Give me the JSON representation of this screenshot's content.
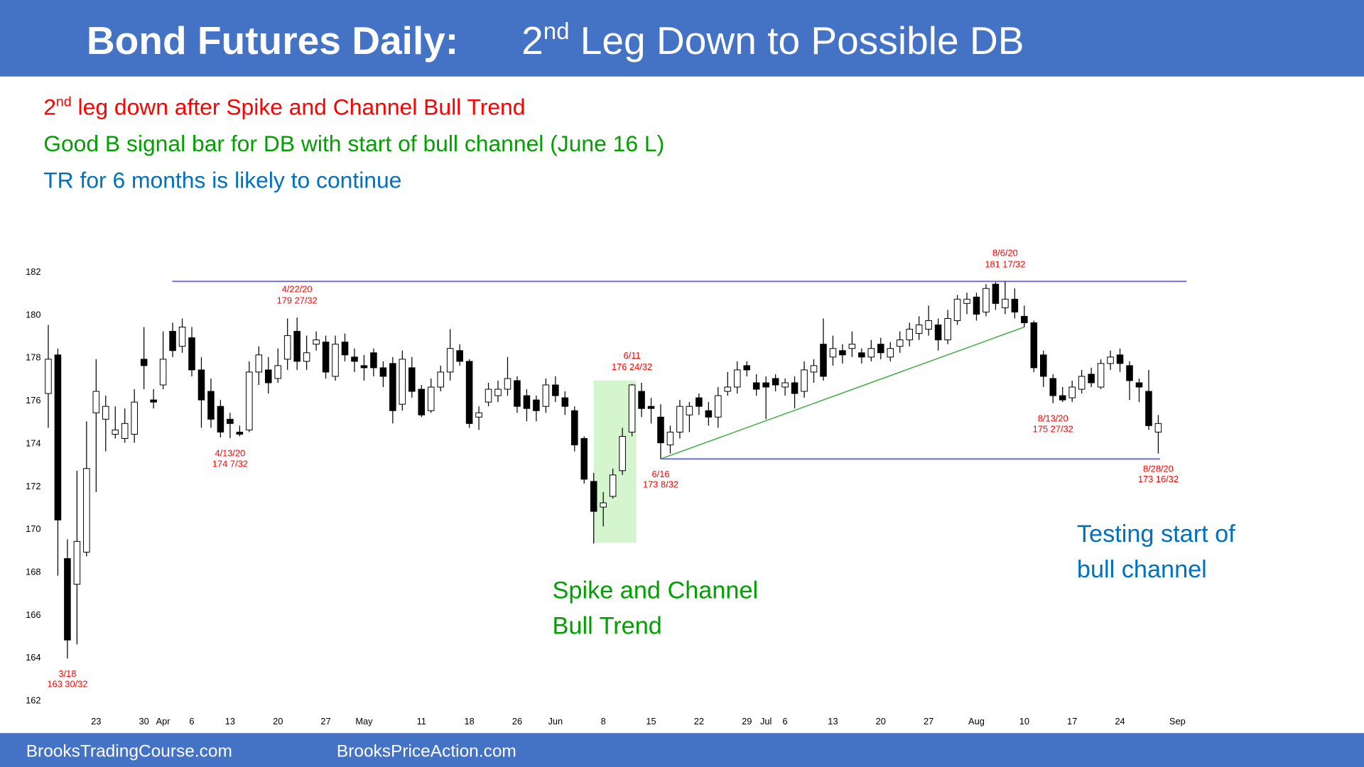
{
  "header": {
    "title_bold": "Bond Futures Daily:",
    "title_ordinal": "2",
    "title_sup": "nd",
    "title_rest": " Leg Down to Possible DB"
  },
  "notes": [
    {
      "ordinal": "2",
      "sup": "nd",
      "rest": " leg down after Spike and Channel Bull Trend",
      "color": "#ff0000"
    },
    {
      "text": "Good B signal bar for DB with start of bull channel (June 16 L)",
      "color": "#00a000"
    },
    {
      "text": "TR for 6 months is likely to continue",
      "color": "#0070c0"
    }
  ],
  "callouts": [
    {
      "lines": [
        "Spike and Channel",
        "Bull Trend"
      ],
      "color": "#00a000"
    },
    {
      "lines": [
        "Testing start of",
        "bull channel"
      ],
      "color": "#0070c0"
    }
  ],
  "footer": [
    "BrooksTradingCourse.com",
    "BrooksPriceAction.com"
  ],
  "chart_data": {
    "type": "candlestick",
    "x": [
      "2020-03-16",
      "2020-03-17",
      "2020-03-18",
      "2020-03-19",
      "2020-03-20",
      "2020-03-23",
      "2020-03-24",
      "2020-03-25",
      "2020-03-26",
      "2020-03-27",
      "2020-03-30",
      "2020-03-31",
      "2020-04-01",
      "2020-04-02",
      "2020-04-03",
      "2020-04-06",
      "2020-04-07",
      "2020-04-08",
      "2020-04-09",
      "2020-04-13",
      "2020-04-14",
      "2020-04-15",
      "2020-04-16",
      "2020-04-17",
      "2020-04-20",
      "2020-04-21",
      "2020-04-22",
      "2020-04-23",
      "2020-04-24",
      "2020-04-27",
      "2020-04-28",
      "2020-04-29",
      "2020-04-30",
      "2020-05-01",
      "2020-05-04",
      "2020-05-05",
      "2020-05-06",
      "2020-05-07",
      "2020-05-08",
      "2020-05-11",
      "2020-05-12",
      "2020-05-13",
      "2020-05-14",
      "2020-05-15",
      "2020-05-18",
      "2020-05-19",
      "2020-05-20",
      "2020-05-21",
      "2020-05-22",
      "2020-05-26",
      "2020-05-27",
      "2020-05-28",
      "2020-05-29",
      "2020-06-01",
      "2020-06-02",
      "2020-06-03",
      "2020-06-04",
      "2020-06-05",
      "2020-06-08",
      "2020-06-09",
      "2020-06-10",
      "2020-06-11",
      "2020-06-12",
      "2020-06-15",
      "2020-06-16",
      "2020-06-17",
      "2020-06-18",
      "2020-06-19",
      "2020-06-22",
      "2020-06-23",
      "2020-06-24",
      "2020-06-25",
      "2020-06-26",
      "2020-06-29",
      "2020-06-30",
      "2020-07-01",
      "2020-07-02",
      "2020-07-06",
      "2020-07-07",
      "2020-07-08",
      "2020-07-09",
      "2020-07-10",
      "2020-07-13",
      "2020-07-14",
      "2020-07-15",
      "2020-07-16",
      "2020-07-17",
      "2020-07-20",
      "2020-07-21",
      "2020-07-22",
      "2020-07-23",
      "2020-07-24",
      "2020-07-27",
      "2020-07-28",
      "2020-07-29",
      "2020-07-30",
      "2020-07-31",
      "2020-08-03",
      "2020-08-04",
      "2020-08-05",
      "2020-08-06",
      "2020-08-07",
      "2020-08-10",
      "2020-08-11",
      "2020-08-12",
      "2020-08-13",
      "2020-08-14",
      "2020-08-17",
      "2020-08-18",
      "2020-08-19",
      "2020-08-20",
      "2020-08-21",
      "2020-08-24",
      "2020-08-25",
      "2020-08-26",
      "2020-08-27",
      "2020-08-28"
    ],
    "open": [
      176.3,
      178.1,
      168.6,
      167.4,
      168.9,
      175.4,
      175.1,
      174.4,
      174.2,
      174.4,
      177.9,
      176.0,
      176.7,
      179.2,
      178.5,
      178.9,
      177.4,
      176.4,
      175.7,
      175.1,
      174.5,
      174.6,
      177.3,
      177.4,
      177.0,
      177.9,
      179.2,
      177.8,
      178.6,
      178.7,
      177.1,
      178.7,
      178.0,
      177.6,
      178.2,
      177.5,
      177.7,
      175.8,
      177.5,
      176.5,
      175.5,
      176.6,
      177.3,
      178.3,
      177.8,
      175.2,
      175.9,
      176.2,
      176.5,
      176.9,
      176.2,
      176.0,
      175.7,
      176.7,
      176.1,
      175.5,
      174.2,
      172.2,
      171.0,
      171.5,
      172.7,
      174.5,
      176.4,
      175.7,
      175.2,
      173.9,
      174.5,
      175.3,
      176.1,
      175.5,
      175.2,
      176.4,
      176.6,
      177.6,
      176.8,
      176.8,
      177.0,
      176.6,
      176.8,
      176.4,
      177.3,
      178.6,
      178.0,
      178.3,
      178.4,
      178.2,
      178.0,
      178.6,
      178.0,
      178.5,
      178.8,
      179.1,
      179.3,
      179.5,
      178.8,
      179.7,
      180.5,
      180.8,
      180.1,
      181.4,
      180.3,
      180.7,
      179.9,
      179.6,
      178.1,
      177.0,
      176.2,
      176.1,
      176.5,
      177.2,
      176.6,
      177.7,
      178.1,
      177.6,
      176.8,
      176.4,
      174.5
    ],
    "high": [
      179.5,
      178.4,
      169.5,
      172.7,
      175.0,
      177.9,
      176.2,
      175.7,
      175.6,
      176.5,
      179.4,
      176.5,
      179.2,
      179.6,
      179.8,
      179.4,
      178.0,
      177.0,
      176.0,
      175.4,
      174.8,
      177.8,
      178.5,
      178.0,
      178.4,
      179.8,
      179.84375,
      179.0,
      179.2,
      179.0,
      179.0,
      179.1,
      178.4,
      178.1,
      178.4,
      177.8,
      178.0,
      178.3,
      178.0,
      176.7,
      177.0,
      177.6,
      179.3,
      178.6,
      177.9,
      175.7,
      176.8,
      176.9,
      178.0,
      177.1,
      176.5,
      176.2,
      177.0,
      177.1,
      176.4,
      175.7,
      174.3,
      172.6,
      171.7,
      172.8,
      174.7,
      176.75,
      176.8,
      176.1,
      175.8,
      174.8,
      176.0,
      175.9,
      176.3,
      175.9,
      176.6,
      177.3,
      177.8,
      177.8,
      177.2,
      177.1,
      177.2,
      177.0,
      177.1,
      177.8,
      177.9,
      179.8,
      179.0,
      178.6,
      179.2,
      178.4,
      178.8,
      178.9,
      178.7,
      179.2,
      179.6,
      179.9,
      180.4,
      179.8,
      180.2,
      180.9,
      181.0,
      181.0,
      181.4,
      181.5,
      181.53125,
      181.2,
      180.4,
      179.7,
      178.3,
      177.2,
      176.6,
      176.9,
      177.4,
      177.5,
      177.9,
      178.3,
      178.4,
      177.8,
      177.0,
      177.4,
      175.3
    ],
    "low": [
      174.7,
      167.8,
      163.9375,
      164.6,
      168.7,
      171.7,
      173.6,
      174.2,
      174.0,
      174.0,
      176.5,
      175.6,
      176.5,
      178.0,
      178.2,
      177.1,
      174.7,
      174.7,
      174.25,
      174.21875,
      174.3,
      174.5,
      176.7,
      176.3,
      176.8,
      177.4,
      177.4,
      177.4,
      178.3,
      177.0,
      176.9,
      177.8,
      177.3,
      176.9,
      177.1,
      176.6,
      174.9,
      175.5,
      176.1,
      175.2,
      175.4,
      176.4,
      176.9,
      177.6,
      174.7,
      174.6,
      175.7,
      175.9,
      176.2,
      175.4,
      175.0,
      175.0,
      175.4,
      175.9,
      175.3,
      173.6,
      172.1,
      169.3,
      170.1,
      171.4,
      172.5,
      174.3,
      175.2,
      174.9,
      173.25,
      173.5,
      174.2,
      174.5,
      175.3,
      174.8,
      174.7,
      176.2,
      176.3,
      177.1,
      176.2,
      175.1,
      176.4,
      176.2,
      175.6,
      176.1,
      176.8,
      176.9,
      177.6,
      177.7,
      178.0,
      177.7,
      177.8,
      177.9,
      177.8,
      178.2,
      178.5,
      178.8,
      179.0,
      178.3,
      178.6,
      179.5,
      180.0,
      179.7,
      179.9,
      180.2,
      180.0,
      179.8,
      179.4,
      177.3,
      176.6,
      175.84375,
      175.9,
      175.9,
      176.3,
      176.6,
      176.5,
      177.4,
      177.3,
      176.0,
      175.9,
      174.6,
      173.5
    ],
    "close": [
      177.9,
      170.4,
      164.8,
      169.4,
      172.8,
      176.4,
      175.7,
      174.6,
      174.9,
      175.9,
      177.6,
      175.9,
      177.9,
      178.3,
      179.4,
      177.4,
      176.0,
      175.1,
      174.5,
      174.9,
      174.4,
      177.3,
      178.1,
      176.8,
      177.6,
      179.0,
      177.8,
      178.2,
      178.8,
      177.3,
      178.6,
      178.1,
      177.8,
      177.5,
      177.5,
      177.1,
      175.5,
      177.9,
      176.4,
      175.3,
      176.6,
      177.3,
      178.4,
      177.8,
      174.9,
      175.4,
      176.5,
      176.5,
      177.0,
      175.7,
      175.6,
      175.5,
      176.7,
      176.2,
      175.7,
      173.9,
      172.3,
      170.8,
      171.2,
      172.5,
      174.3,
      176.7,
      175.6,
      175.6,
      174.0,
      174.5,
      175.7,
      175.7,
      175.7,
      175.2,
      176.2,
      176.6,
      177.4,
      177.4,
      176.5,
      176.6,
      176.7,
      176.8,
      176.3,
      177.4,
      177.6,
      177.1,
      178.4,
      178.1,
      178.6,
      178.0,
      178.4,
      178.2,
      178.4,
      178.8,
      179.3,
      179.5,
      179.7,
      178.8,
      179.8,
      180.7,
      180.7,
      180.0,
      181.2,
      180.5,
      180.7,
      180.1,
      179.6,
      177.5,
      177.1,
      176.2,
      176.0,
      176.6,
      177.1,
      176.8,
      177.7,
      178.0,
      177.7,
      176.9,
      176.6,
      174.8,
      174.9
    ],
    "up_color": "#ffffff",
    "down_color": "#000000",
    "ylim": [
      162,
      182
    ],
    "yticks": [
      162,
      164,
      166,
      168,
      170,
      172,
      174,
      176,
      178,
      180,
      182
    ],
    "xticks": [
      {
        "value": "2020-03-23",
        "label": "23"
      },
      {
        "value": "2020-03-30",
        "label": "30"
      },
      {
        "value": "2020-04-01",
        "label": "Apr"
      },
      {
        "value": "2020-04-06",
        "label": "6"
      },
      {
        "value": "2020-04-13",
        "label": "13"
      },
      {
        "value": "2020-04-20",
        "label": "20"
      },
      {
        "value": "2020-04-27",
        "label": "27"
      },
      {
        "value": "2020-05-01",
        "label": "May"
      },
      {
        "value": "2020-05-11",
        "label": "11"
      },
      {
        "value": "2020-05-18",
        "label": "18"
      },
      {
        "value": "2020-05-26",
        "label": "26"
      },
      {
        "value": "2020-06-01",
        "label": "Jun"
      },
      {
        "value": "2020-06-08",
        "label": "8"
      },
      {
        "value": "2020-06-15",
        "label": "15"
      },
      {
        "value": "2020-06-22",
        "label": "22"
      },
      {
        "value": "2020-06-29",
        "label": "29"
      },
      {
        "value": "2020-07-01",
        "label": "Jul"
      },
      {
        "value": "2020-07-06",
        "label": "6"
      },
      {
        "value": "2020-07-13",
        "label": "13"
      },
      {
        "value": "2020-07-20",
        "label": "20"
      },
      {
        "value": "2020-07-27",
        "label": "27"
      },
      {
        "value": "2020-08-03",
        "label": "Aug"
      },
      {
        "value": "2020-08-10",
        "label": "10"
      },
      {
        "value": "2020-08-17",
        "label": "17"
      },
      {
        "value": "2020-08-24",
        "label": "24"
      },
      {
        "value": "2020-09-01",
        "label": "Sep"
      }
    ],
    "annotations": [
      {
        "date": "3/18",
        "price": "163 30/32",
        "x": "2020-03-18",
        "value": 163.9375,
        "side": "below"
      },
      {
        "date": "4/13/20",
        "price": "174 7/32",
        "x": "2020-04-13",
        "value": 174.21875,
        "side": "below"
      },
      {
        "date": "4/22/20",
        "price": "179 27/32",
        "x": "2020-04-22",
        "value": 179.84375,
        "side": "above"
      },
      {
        "date": "6/11",
        "price": "176 24/32",
        "x": "2020-06-11",
        "value": 176.75,
        "side": "above"
      },
      {
        "date": "6/16",
        "price": "173 8/32",
        "x": "2020-06-16",
        "value": 173.25,
        "side": "below"
      },
      {
        "date": "8/6/20",
        "price": "181 17/32",
        "x": "2020-08-06",
        "value": 181.53125,
        "side": "above"
      },
      {
        "date": "8/13/20",
        "price": "175 27/32",
        "x": "2020-08-13",
        "value": 175.84375,
        "side": "below"
      },
      {
        "date": "8/28/20",
        "price": "173 16/32",
        "x": "2020-08-28",
        "value": 173.5,
        "side": "below"
      }
    ]
  }
}
